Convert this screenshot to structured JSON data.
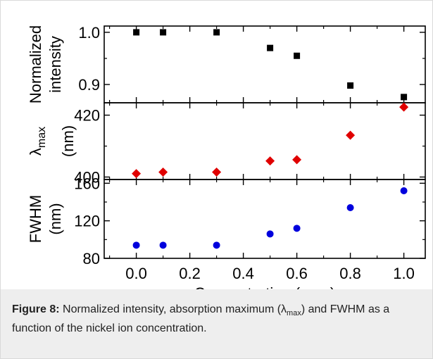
{
  "caption": {
    "label": "Figure 8:",
    "text_before": "Normalized intensity, absorption maximum (",
    "lambda": "λ",
    "subscript": "max",
    "text_after": ") and FWHM as a function of the nickel ion concentration."
  },
  "chart_data": {
    "type": "scatter",
    "layout": "stacked panels sharing x-axis",
    "x": [
      0.0,
      0.1,
      0.3,
      0.5,
      0.6,
      0.8,
      1.0
    ],
    "xlabel": "Concentration (ppm)",
    "xlim": [
      -0.12,
      1.08
    ],
    "xticks": [
      "0.0",
      "0.2",
      "0.4",
      "0.6",
      "0.8",
      "1.0"
    ],
    "xtick_values": [
      0.0,
      0.2,
      0.4,
      0.6,
      0.8,
      1.0
    ],
    "grid": false,
    "panels": [
      {
        "name": "intensity",
        "ylabel_line1": "Normalized",
        "ylabel_line2": "intensity",
        "ylim": [
          0.865,
          1.012
        ],
        "yticks": [
          "0.9",
          "1.0"
        ],
        "ytick_values": [
          0.9,
          1.0
        ],
        "marker": "square",
        "color": "#000000",
        "values": [
          1.0,
          1.0,
          1.0,
          0.97,
          0.955,
          0.898,
          0.876
        ]
      },
      {
        "name": "lambda_max",
        "ylabel_symbol": "λ",
        "ylabel_sub": "max",
        "ylabel_line2": "(nm)",
        "ylim": [
          399.2,
          424.0
        ],
        "yticks": [
          "400",
          "420"
        ],
        "ytick_values": [
          400,
          420
        ],
        "marker": "diamond",
        "color": "#e00000",
        "values": [
          401.1,
          401.6,
          401.6,
          405.2,
          405.6,
          413.5,
          422.6
        ]
      },
      {
        "name": "fwhm",
        "ylabel_line1": "FWHM",
        "ylabel_line2": "(nm)",
        "ylim": [
          80,
          164
        ],
        "yticks": [
          "80",
          "120",
          "160"
        ],
        "ytick_values": [
          80,
          120,
          160
        ],
        "marker": "circle",
        "color": "#0000dd",
        "values": [
          94,
          94,
          94,
          106,
          112,
          134,
          152
        ]
      }
    ]
  }
}
